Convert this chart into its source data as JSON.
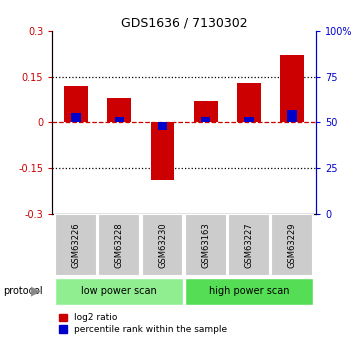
{
  "title": "GDS1636 / 7130302",
  "samples": [
    "GSM63226",
    "GSM63228",
    "GSM63230",
    "GSM63163",
    "GSM63227",
    "GSM63229"
  ],
  "log2_ratio": [
    0.12,
    0.08,
    -0.19,
    0.07,
    0.13,
    0.22
  ],
  "percentile_rank_raw": [
    55,
    53,
    46,
    53,
    53,
    57
  ],
  "red_color": "#cc0000",
  "blue_color": "#0000cc",
  "ylim_left": [
    -0.3,
    0.3
  ],
  "ylim_right": [
    0,
    100
  ],
  "yticks_left": [
    -0.3,
    -0.15,
    0.0,
    0.15,
    0.3
  ],
  "ytick_labels_left": [
    "-0.3",
    "-0.15",
    "0",
    "0.15",
    "0.3"
  ],
  "yticks_right": [
    0,
    25,
    50,
    75,
    100
  ],
  "ytick_labels_right": [
    "0",
    "25",
    "50",
    "75",
    "100%"
  ],
  "groups": [
    {
      "label": "low power scan",
      "color": "#90ee90",
      "start": 0,
      "end": 3
    },
    {
      "label": "high power scan",
      "color": "#55dd55",
      "start": 3,
      "end": 6
    }
  ],
  "protocol_label": "protocol",
  "legend_red": "log2 ratio",
  "legend_blue": "percentile rank within the sample",
  "background_color": "#ffffff",
  "plot_bg": "#ffffff",
  "label_area_color": "#cccccc",
  "dashed_line_color": "#cc0000",
  "dotted_line_color": "#000000"
}
